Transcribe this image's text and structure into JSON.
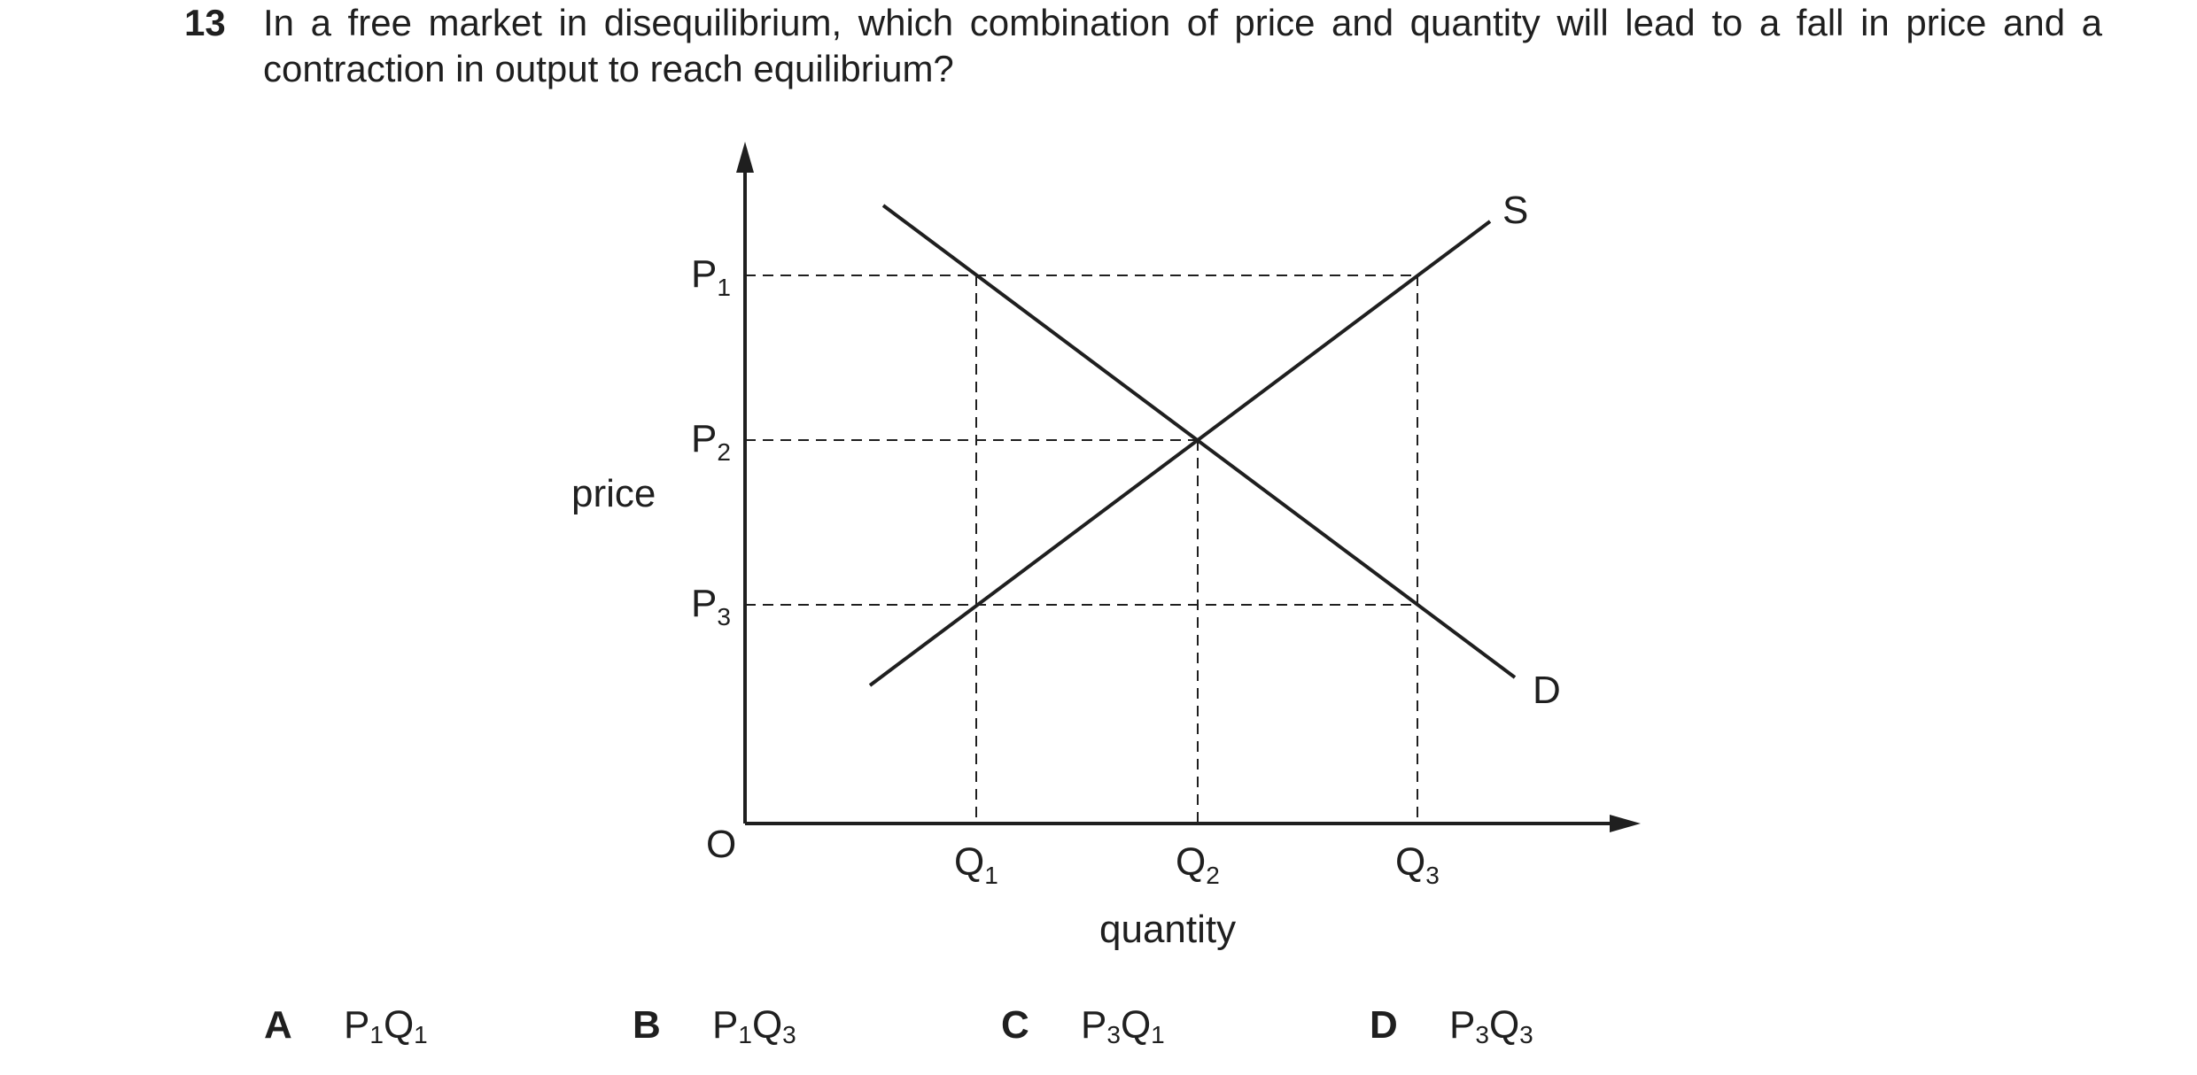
{
  "question": {
    "number": "13",
    "text": "In a free market in disequilibrium, which combination of price and quantity will lead to a fall in price and a contraction in output to reach equilibrium?"
  },
  "diagram": {
    "y_axis_label": "price",
    "x_axis_label": "quantity",
    "origin_label": "O",
    "supply_label": "S",
    "demand_label": "D",
    "price_levels": [
      {
        "base": "P",
        "sub": "1"
      },
      {
        "base": "P",
        "sub": "2"
      },
      {
        "base": "P",
        "sub": "3"
      }
    ],
    "quantity_levels": [
      {
        "base": "Q",
        "sub": "1"
      },
      {
        "base": "Q",
        "sub": "2"
      },
      {
        "base": "Q",
        "sub": "3"
      }
    ]
  },
  "options": [
    {
      "letter": "A",
      "p_sub": "1",
      "q_sub": "1",
      "p": "P",
      "q": "Q"
    },
    {
      "letter": "B",
      "p_sub": "1",
      "q_sub": "3",
      "p": "P",
      "q": "Q"
    },
    {
      "letter": "C",
      "p_sub": "3",
      "q_sub": "1",
      "p": "P",
      "q": "Q"
    },
    {
      "letter": "D",
      "p_sub": "3",
      "q_sub": "3",
      "p": "P",
      "q": "Q"
    }
  ]
}
